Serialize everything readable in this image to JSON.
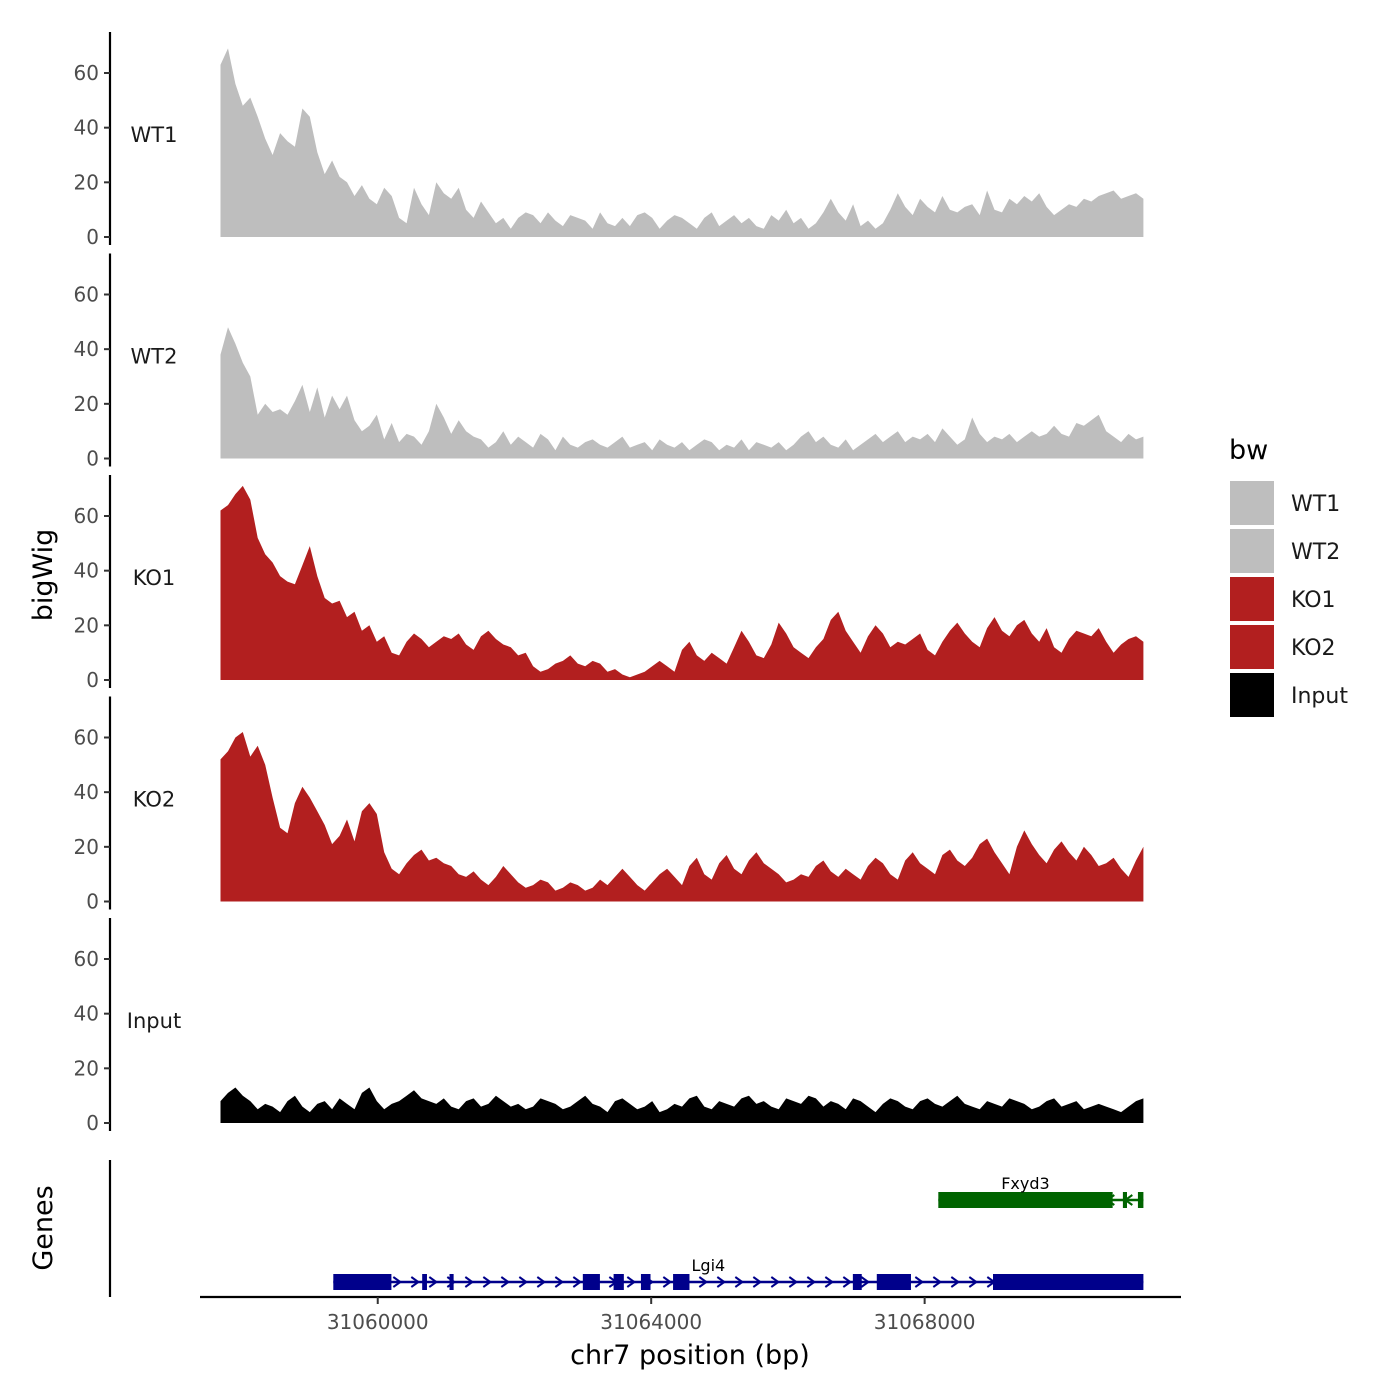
{
  "chart_data": {
    "type": "area",
    "ylabel": "bigWig",
    "xlabel": "chr7 position (bp)",
    "chromosome": "chr7",
    "xlim": [
      31057400,
      31071750
    ],
    "data_range": [
      31057700,
      31071200
    ],
    "ylim": [
      0,
      75
    ],
    "yticks": [
      0,
      20,
      40,
      60
    ],
    "xticks": [
      31060000,
      31064000,
      31068000
    ],
    "xtick_labels": [
      "31060000",
      "31064000",
      "31068000"
    ],
    "legend_title": "bw",
    "colors": {
      "WT1": "#bebebe",
      "WT2": "#bebebe",
      "KO1": "#b21f1f",
      "KO2": "#b21f1f",
      "Input": "#000000",
      "gene_minus": "#006400",
      "gene_plus": "#00008b"
    },
    "tracks": [
      {
        "name": "WT1",
        "color": "#bebebe",
        "values": [
          63,
          69,
          56,
          48,
          51,
          44,
          36,
          30,
          38,
          35,
          33,
          47,
          44,
          31,
          23,
          28,
          22,
          20,
          15,
          19,
          14,
          12,
          18,
          15,
          7,
          5,
          18,
          12,
          8,
          20,
          16,
          14,
          18,
          10,
          7,
          13,
          9,
          5,
          7,
          3,
          7,
          9,
          8,
          5,
          9,
          6,
          4,
          8,
          7,
          6,
          3,
          9,
          5,
          4,
          7,
          4,
          8,
          9,
          7,
          3,
          6,
          8,
          7,
          5,
          3,
          7,
          9,
          4,
          6,
          8,
          5,
          7,
          4,
          3,
          8,
          6,
          10,
          5,
          7,
          3,
          5,
          9,
          14,
          9,
          6,
          12,
          4,
          6,
          3,
          5,
          10,
          16,
          11,
          8,
          14,
          11,
          9,
          15,
          10,
          9,
          11,
          12,
          8,
          17,
          10,
          9,
          14,
          12,
          15,
          13,
          16,
          11,
          8,
          10,
          12,
          11,
          14,
          13,
          15,
          16,
          17,
          14,
          15,
          16,
          14
        ]
      },
      {
        "name": "WT2",
        "color": "#bebebe",
        "values": [
          38,
          48,
          42,
          35,
          30,
          16,
          20,
          17,
          18,
          16,
          21,
          27,
          17,
          26,
          15,
          23,
          18,
          23,
          14,
          10,
          12,
          16,
          7,
          13,
          6,
          9,
          8,
          5,
          10,
          20,
          15,
          9,
          14,
          10,
          8,
          7,
          4,
          6,
          10,
          5,
          8,
          6,
          4,
          9,
          7,
          3,
          8,
          5,
          4,
          6,
          7,
          5,
          4,
          6,
          8,
          4,
          5,
          6,
          3,
          7,
          5,
          4,
          6,
          3,
          5,
          7,
          6,
          3,
          5,
          4,
          7,
          3,
          6,
          5,
          4,
          6,
          3,
          5,
          8,
          10,
          6,
          8,
          5,
          4,
          7,
          3,
          5,
          7,
          9,
          6,
          8,
          10,
          6,
          8,
          7,
          9,
          6,
          11,
          8,
          5,
          7,
          15,
          9,
          6,
          8,
          7,
          9,
          6,
          8,
          10,
          8,
          9,
          12,
          9,
          8,
          13,
          12,
          14,
          16,
          10,
          8,
          6,
          9,
          7,
          8
        ]
      },
      {
        "name": "KO1",
        "color": "#b21f1f",
        "values": [
          62,
          64,
          68,
          71,
          66,
          52,
          46,
          43,
          38,
          36,
          35,
          42,
          49,
          38,
          30,
          28,
          29,
          23,
          25,
          18,
          20,
          14,
          16,
          10,
          9,
          14,
          17,
          15,
          12,
          14,
          16,
          15,
          17,
          13,
          11,
          16,
          18,
          15,
          13,
          12,
          9,
          10,
          5,
          3,
          4,
          6,
          7,
          9,
          6,
          5,
          7,
          6,
          3,
          4,
          2,
          1,
          2,
          3,
          5,
          7,
          5,
          3,
          11,
          14,
          9,
          7,
          10,
          8,
          6,
          12,
          18,
          14,
          9,
          8,
          13,
          21,
          17,
          12,
          10,
          8,
          12,
          15,
          22,
          25,
          18,
          14,
          10,
          16,
          20,
          17,
          12,
          14,
          13,
          15,
          17,
          11,
          9,
          14,
          18,
          21,
          17,
          14,
          12,
          19,
          23,
          18,
          16,
          20,
          22,
          17,
          14,
          19,
          12,
          10,
          15,
          18,
          17,
          16,
          19,
          14,
          10,
          13,
          15,
          16,
          14
        ]
      },
      {
        "name": "KO2",
        "color": "#b21f1f",
        "values": [
          52,
          55,
          60,
          62,
          53,
          57,
          50,
          38,
          27,
          25,
          36,
          42,
          38,
          33,
          28,
          21,
          24,
          30,
          22,
          33,
          36,
          32,
          18,
          12,
          10,
          14,
          17,
          19,
          15,
          16,
          14,
          13,
          10,
          9,
          11,
          8,
          6,
          9,
          13,
          10,
          7,
          5,
          6,
          8,
          7,
          4,
          5,
          7,
          6,
          4,
          5,
          8,
          6,
          9,
          12,
          9,
          6,
          4,
          7,
          10,
          12,
          9,
          6,
          13,
          16,
          10,
          8,
          14,
          17,
          12,
          10,
          15,
          18,
          14,
          12,
          10,
          7,
          8,
          10,
          9,
          13,
          15,
          11,
          9,
          12,
          10,
          8,
          13,
          16,
          14,
          10,
          8,
          15,
          18,
          14,
          12,
          10,
          17,
          19,
          15,
          13,
          16,
          21,
          23,
          18,
          14,
          10,
          20,
          26,
          21,
          17,
          14,
          19,
          22,
          18,
          15,
          20,
          17,
          13,
          14,
          16,
          12,
          9,
          15,
          20
        ]
      },
      {
        "name": "Input",
        "color": "#000000",
        "values": [
          8,
          11,
          13,
          10,
          8,
          5,
          7,
          6,
          4,
          8,
          10,
          6,
          4,
          7,
          8,
          5,
          9,
          7,
          5,
          11,
          13,
          8,
          5,
          7,
          8,
          10,
          12,
          9,
          8,
          7,
          9,
          6,
          5,
          8,
          9,
          6,
          7,
          10,
          8,
          6,
          7,
          5,
          6,
          9,
          8,
          7,
          5,
          6,
          8,
          10,
          7,
          6,
          4,
          8,
          9,
          7,
          5,
          6,
          8,
          4,
          5,
          7,
          6,
          9,
          10,
          6,
          5,
          8,
          7,
          6,
          9,
          10,
          7,
          8,
          6,
          5,
          9,
          8,
          7,
          10,
          9,
          6,
          8,
          7,
          5,
          9,
          8,
          6,
          4,
          7,
          9,
          8,
          6,
          5,
          8,
          9,
          7,
          6,
          8,
          10,
          7,
          6,
          5,
          8,
          7,
          6,
          9,
          8,
          7,
          5,
          6,
          8,
          9,
          6,
          7,
          8,
          5,
          6,
          7,
          6,
          5,
          4,
          6,
          8,
          9
        ]
      }
    ],
    "genes_label": "Genes",
    "genes": [
      {
        "name": "Fxyd3",
        "strand": "-",
        "color": "#006400",
        "start": 31068200,
        "end": 31071200,
        "exons": [
          [
            31068200,
            31070750
          ],
          [
            31070900,
            31070960
          ],
          [
            31071120,
            31071200
          ]
        ]
      },
      {
        "name": "Lgi4",
        "strand": "+",
        "color": "#00008b",
        "start": 31059350,
        "end": 31071200,
        "exons": [
          [
            31059350,
            31060200
          ],
          [
            31060650,
            31060720
          ],
          [
            31061050,
            31061110
          ],
          [
            31063000,
            31063250
          ],
          [
            31063450,
            31063600
          ],
          [
            31063850,
            31063990
          ],
          [
            31064320,
            31064560
          ],
          [
            31066950,
            31067080
          ],
          [
            31067300,
            31067800
          ],
          [
            31069000,
            31071200
          ]
        ]
      }
    ]
  }
}
